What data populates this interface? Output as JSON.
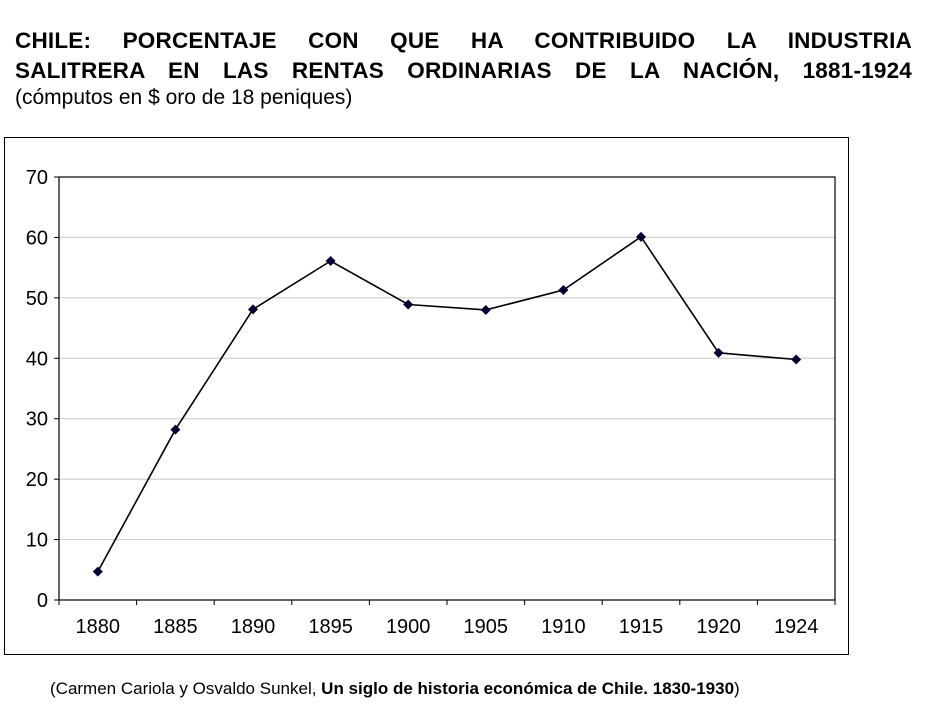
{
  "header": {
    "title_line1": "CHILE: PORCENTAJE CON QUE HA CONTRIBUIDO LA INDUSTRIA",
    "title_line2": "SALITRERA EN LAS RENTAS ORDINARIAS DE LA NACIÓN, 1881-1924",
    "subtitle": "(cómputos en $ oro de 18 peniques)"
  },
  "source": {
    "open": "(Carmen Cariola y Osvaldo Sunkel, ",
    "book": "Un siglo de historia económica de Chile. 1830-1930",
    "close": ")"
  },
  "chart_data": {
    "type": "line",
    "title": "",
    "xlabel": "",
    "ylabel": "",
    "categories": [
      "1880",
      "1885",
      "1890",
      "1895",
      "1900",
      "1905",
      "1910",
      "1915",
      "1920",
      "1924"
    ],
    "series": [
      {
        "values": [
          4.7,
          28.2,
          48.1,
          56.1,
          48.9,
          48.0,
          51.3,
          60.1,
          40.9,
          39.8
        ]
      }
    ],
    "ylim": [
      0,
      70
    ],
    "yticks": [
      0,
      10,
      20,
      30,
      40,
      50,
      60,
      70
    ],
    "grid": true,
    "legend": "none",
    "colors": {
      "line": "#000000",
      "marker": "#000033",
      "grid": "#c8c8c8"
    }
  }
}
